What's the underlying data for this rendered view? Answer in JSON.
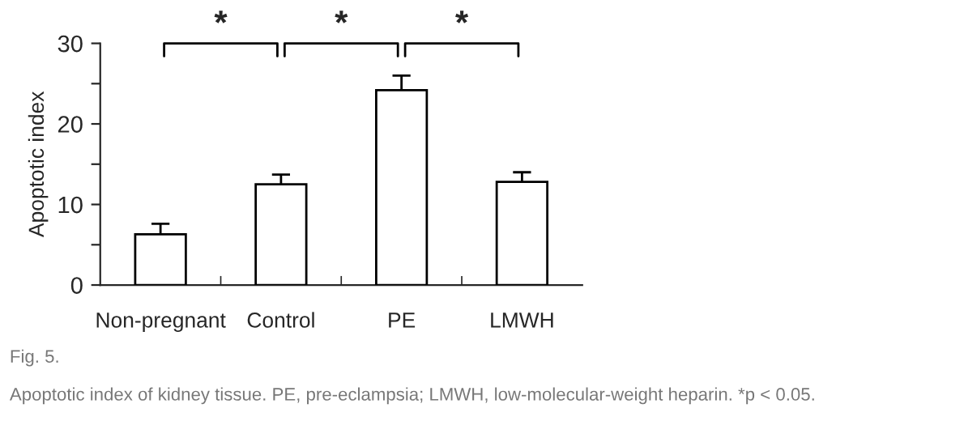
{
  "chart_data": {
    "type": "bar",
    "ylabel": "Apoptotic index",
    "categories": [
      "Non-pregnant",
      "Control",
      "PE",
      "LMWH"
    ],
    "values": [
      6.3,
      12.5,
      24.2,
      12.8
    ],
    "errors": [
      1.3,
      1.2,
      1.8,
      1.2
    ],
    "color": "#ffffff",
    "ylim": [
      0,
      30
    ],
    "yticks": [
      0,
      {
        "value": 5,
        "label": null
      },
      10,
      {
        "value": 15,
        "label": null
      },
      20,
      {
        "value": 25,
        "label": null
      },
      30
    ],
    "grid": false,
    "annotations": [
      "*",
      "*",
      "*",
      "Fig. 5.",
      "Apoptotic index of kidney tissue. PE, pre-eclampsia; LMWH, low-molecular-weight heparin. *p < 0.05."
    ]
  }
}
